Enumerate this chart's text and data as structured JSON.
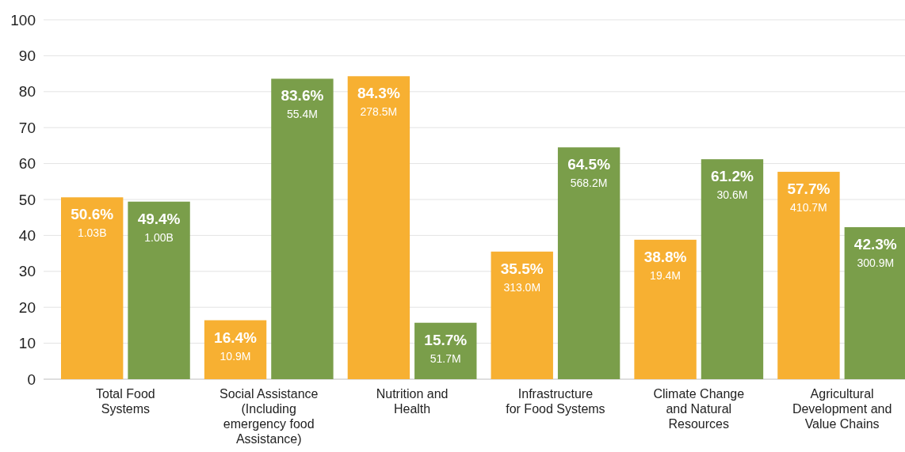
{
  "chart_data": {
    "type": "bar",
    "categories": [
      "Total Food Systems",
      "Social Assistance (Including emergency food Assistance)",
      "Nutrition and Health",
      "Infrastructure for Food Systems",
      "Climate Change and Natural Resources",
      "Agricultural Development and Value Chains"
    ],
    "series": [
      {
        "color": "#f7b032",
        "values": [
          50.6,
          16.4,
          84.3,
          35.5,
          38.8,
          57.7
        ],
        "value_labels": [
          "50.6%\n1.03B",
          "16.4%\n10.9M",
          "84.3%\n278.5M",
          "35.5%\n313.0M",
          "38.8%\n19.4M",
          "57.7%\n410.7M"
        ]
      },
      {
        "color": "#7a9e4a",
        "values": [
          49.4,
          83.6,
          15.7,
          64.5,
          61.2,
          42.3
        ],
        "value_labels": [
          "49.4%\n1.00B",
          "83.6%\n55.4M",
          "15.7%\n51.7M",
          "64.5%\n568.2M",
          "61.2%\n30.6M",
          "42.3%\n300.9M"
        ]
      }
    ],
    "ylim": [
      0,
      100
    ],
    "yticks": [
      0,
      10,
      20,
      30,
      40,
      50,
      60,
      70,
      80,
      90,
      100
    ],
    "grid": "y"
  }
}
